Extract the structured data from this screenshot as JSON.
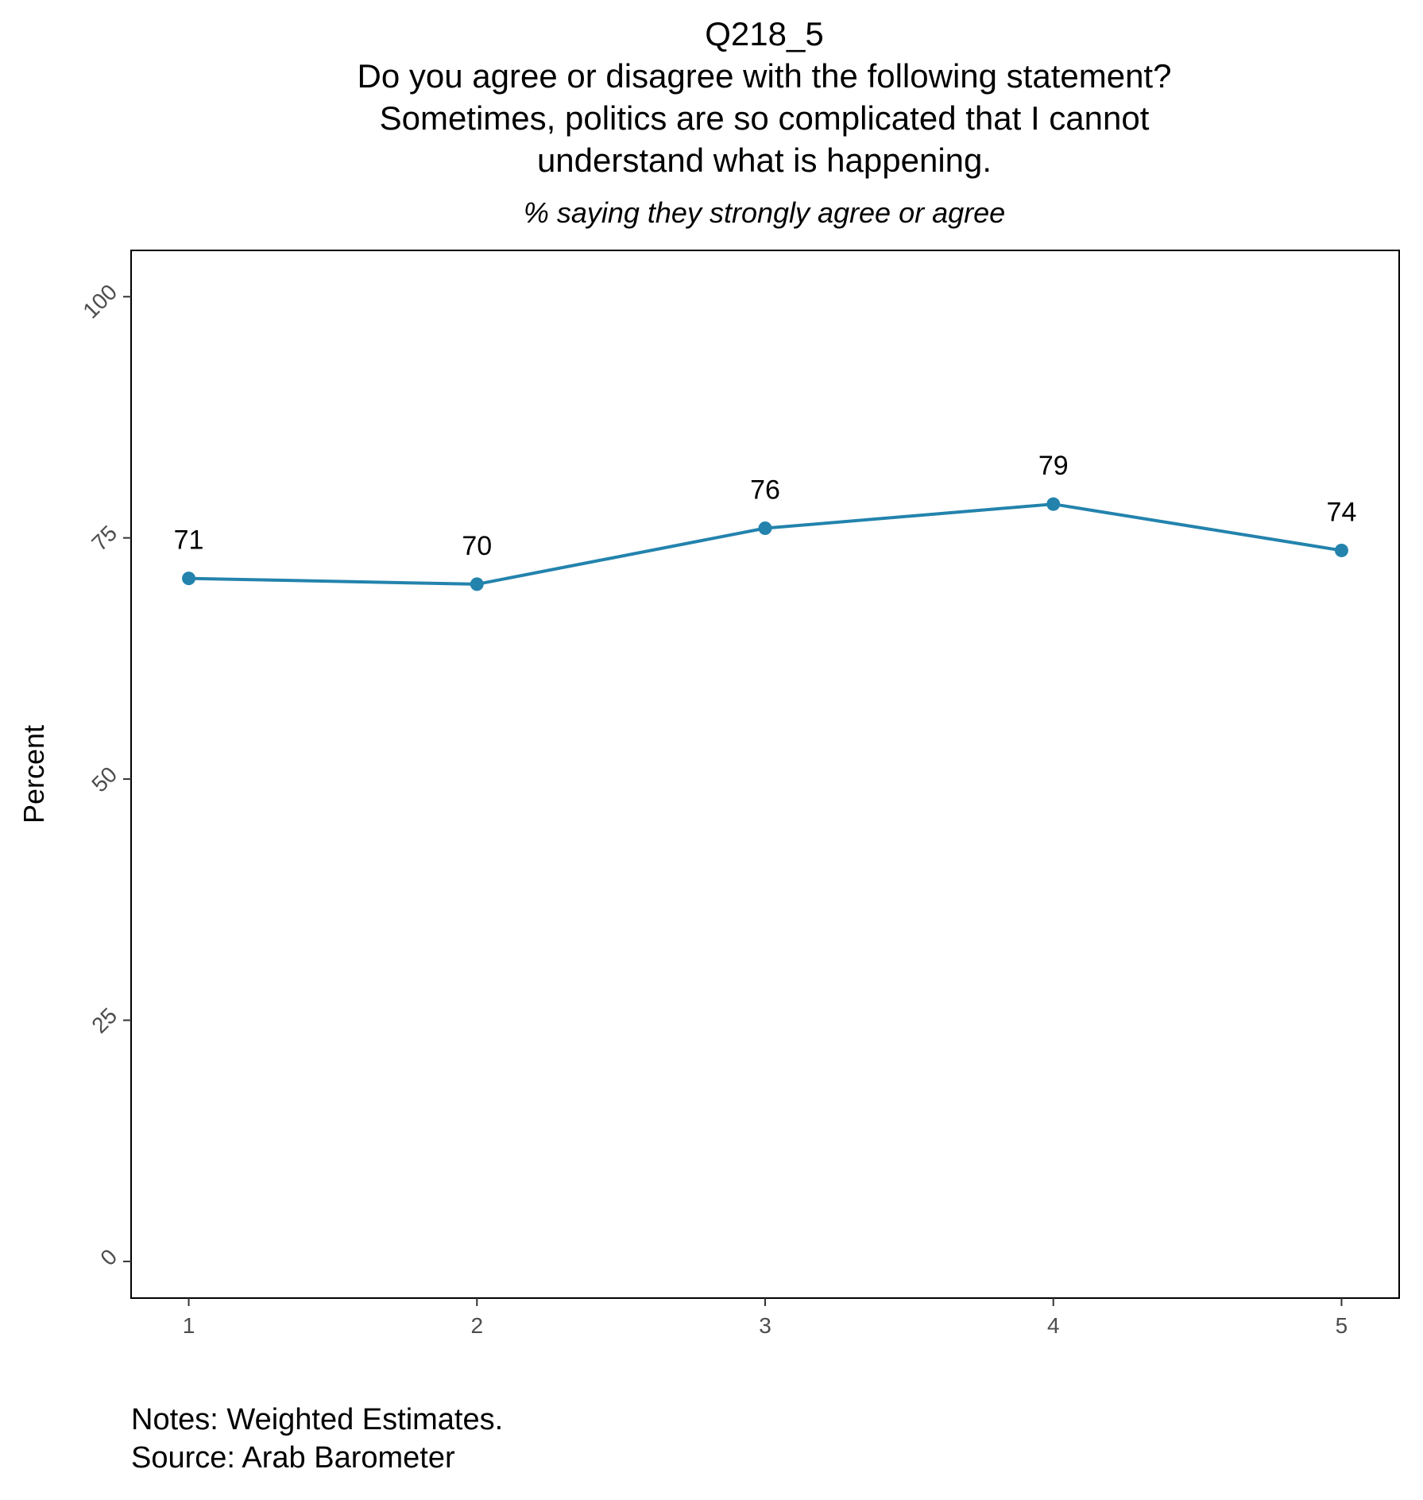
{
  "chart_data": {
    "type": "line",
    "title_lines": [
      "Q218_5",
      "Do you agree or disagree with the following statement?",
      "Sometimes, politics are so complicated that I cannot",
      "understand what is happening."
    ],
    "subtitle": "% saying they strongly agree or agree",
    "xlabel": "",
    "ylabel": "Percent",
    "x": [
      1,
      2,
      3,
      4,
      5
    ],
    "x_tick_labels": [
      "1",
      "2",
      "3",
      "4",
      "5"
    ],
    "values": [
      70.8,
      70.2,
      76.0,
      78.5,
      73.7
    ],
    "data_labels": [
      "71",
      "70",
      "76",
      "79",
      "74"
    ],
    "y_ticks": [
      0,
      25,
      50,
      75,
      100
    ],
    "y_tick_labels": [
      "0",
      "25",
      "50",
      "75",
      "100"
    ],
    "ylim": [
      -3.8,
      104.8
    ],
    "xlim": [
      0.8,
      5.2
    ],
    "grid": false,
    "legend": "none",
    "line_color": "#2383ad",
    "notes": [
      "Notes: Weighted Estimates.",
      "Source: Arab Barometer"
    ]
  }
}
